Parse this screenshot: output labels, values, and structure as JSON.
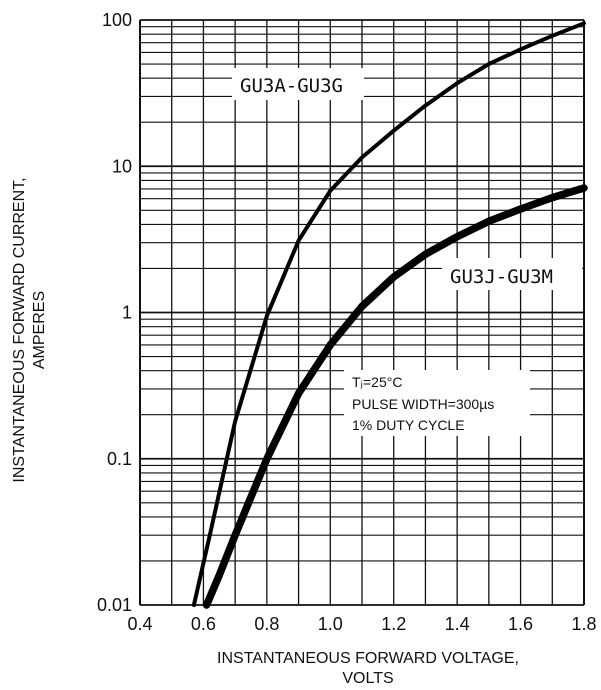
{
  "chart_data": {
    "type": "line",
    "xlabel": [
      "INSTANTANEOUS FORWARD VOLTAGE,",
      "VOLTS"
    ],
    "ylabel": [
      "INSTANTANEOUS FORWARD CURRENT,",
      "AMPERES"
    ],
    "xlim": [
      0.4,
      1.8
    ],
    "ylim": [
      0.01,
      100
    ],
    "yscale": "log",
    "grid": true,
    "x_ticks": [
      0.4,
      0.6,
      0.8,
      1.0,
      1.2,
      1.4,
      1.6,
      1.8
    ],
    "x_tick_labels": [
      "0.4",
      "0.6",
      "0.8",
      "1.0",
      "1.2",
      "1.4",
      "1.6",
      "1.8"
    ],
    "y_ticks": [
      0.01,
      0.1,
      1,
      10,
      100
    ],
    "y_tick_labels": [
      "0.01",
      "0.1",
      "1",
      "10",
      "100"
    ],
    "series": [
      {
        "name": "GU3A-GU3G",
        "x": [
          0.57,
          0.62,
          0.7,
          0.8,
          0.9,
          1.0,
          1.1,
          1.2,
          1.3,
          1.4,
          1.5,
          1.6,
          1.7,
          1.8
        ],
        "y": [
          0.01,
          0.03,
          0.18,
          0.95,
          3.1,
          6.8,
          11.5,
          17.5,
          26,
          37,
          50,
          63,
          78,
          95
        ]
      },
      {
        "name": "GU3J-GU3M",
        "x": [
          0.61,
          0.65,
          0.7,
          0.8,
          0.9,
          1.0,
          1.1,
          1.2,
          1.3,
          1.4,
          1.5,
          1.6,
          1.7,
          1.8
        ],
        "y": [
          0.01,
          0.016,
          0.03,
          0.1,
          0.28,
          0.6,
          1.1,
          1.75,
          2.5,
          3.3,
          4.2,
          5.1,
          6.1,
          7.1
        ]
      }
    ],
    "annotation": {
      "lines": [
        "Tⱼ=25°C",
        "PULSE WIDTH=300µs",
        "1% DUTY CYCLE"
      ]
    }
  }
}
